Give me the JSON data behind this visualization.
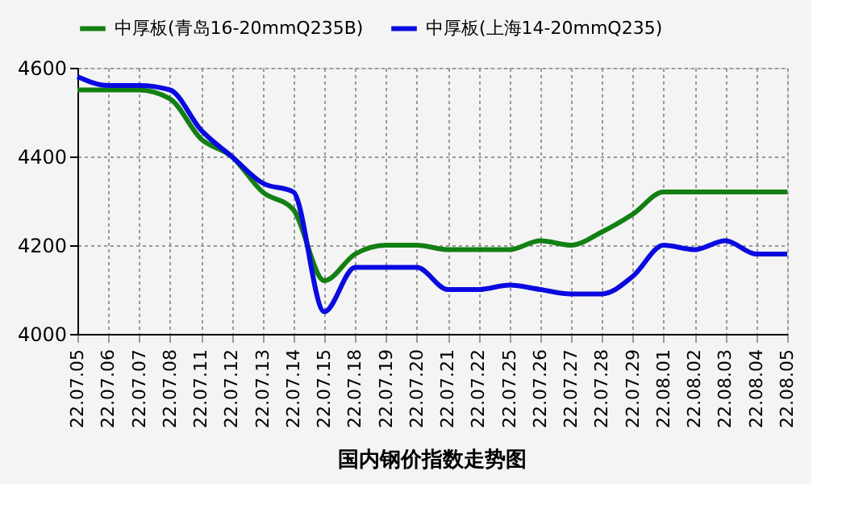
{
  "chart_data": {
    "type": "line",
    "title": "国内钢价指数走势图",
    "categories": [
      "22.07.05",
      "22.07.06",
      "22.07.07",
      "22.07.08",
      "22.07.11",
      "22.07.12",
      "22.07.13",
      "22.07.14",
      "22.07.15",
      "22.07.18",
      "22.07.19",
      "22.07.20",
      "22.07.21",
      "22.07.22",
      "22.07.25",
      "22.07.26",
      "22.07.27",
      "22.07.28",
      "22.07.29",
      "22.08.01",
      "22.08.02",
      "22.08.03",
      "22.08.04",
      "22.08.05"
    ],
    "series": [
      {
        "name": "中厚板(青岛16-20mmQ235B)",
        "color": "#138013",
        "values": [
          4550,
          4550,
          4550,
          4530,
          4440,
          4400,
          4320,
          4280,
          4120,
          4180,
          4200,
          4200,
          4190,
          4190,
          4190,
          4210,
          4200,
          4230,
          4270,
          4320,
          4320,
          4320,
          4320,
          4320
        ]
      },
      {
        "name": "中厚板(上海14-20mmQ235)",
        "color": "#0a0ae0",
        "values": [
          4580,
          4560,
          4560,
          4550,
          4460,
          4400,
          4340,
          4320,
          4050,
          4150,
          4150,
          4150,
          4100,
          4100,
          4110,
          4100,
          4090,
          4090,
          4130,
          4200,
          4190,
          4210,
          4180,
          4180
        ]
      }
    ],
    "ylim": [
      4000,
      4600
    ],
    "yticks": [
      4000,
      4200,
      4400,
      4600
    ],
    "grid": true,
    "legend": "top",
    "marker": "none",
    "line_style": "solid"
  }
}
